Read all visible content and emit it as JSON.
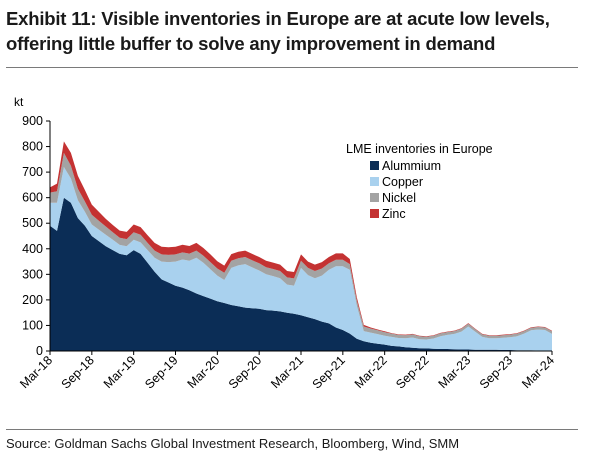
{
  "title_line1": "Exhibit 11: Visible inventories in Europe are at acute low levels,",
  "title_line2": "offering little buffer to solve any improvement in demand",
  "source": "Source: Goldman Sachs Global Investment Research, Bloomberg, Wind, SMM",
  "chart_data": {
    "type": "area",
    "stacked": true,
    "ylabel": "kt",
    "ylim": [
      0,
      900
    ],
    "yticks": [
      0,
      100,
      200,
      300,
      400,
      500,
      600,
      700,
      800,
      900
    ],
    "x_tick_labels": [
      "Mar-18",
      "Sep-18",
      "Mar-19",
      "Sep-19",
      "Mar-20",
      "Sep-20",
      "Mar-21",
      "Sep-21",
      "Mar-22",
      "Sep-22",
      "Mar-23",
      "Sep-23",
      "Mar-24"
    ],
    "x_tick_dates": [
      "2018-03",
      "2018-09",
      "2019-03",
      "2019-09",
      "2020-03",
      "2020-09",
      "2021-03",
      "2021-09",
      "2022-03",
      "2022-09",
      "2023-03",
      "2023-09",
      "2024-03"
    ],
    "legend_title": "LME inventories in Europe",
    "legend_position": "right",
    "grid": false,
    "x": [
      "2018-03",
      "2018-04",
      "2018-05",
      "2018-06",
      "2018-07",
      "2018-08",
      "2018-09",
      "2018-10",
      "2018-11",
      "2018-12",
      "2019-01",
      "2019-02",
      "2019-03",
      "2019-04",
      "2019-05",
      "2019-06",
      "2019-07",
      "2019-08",
      "2019-09",
      "2019-10",
      "2019-11",
      "2019-12",
      "2020-01",
      "2020-02",
      "2020-03",
      "2020-04",
      "2020-05",
      "2020-06",
      "2020-07",
      "2020-08",
      "2020-09",
      "2020-10",
      "2020-11",
      "2020-12",
      "2021-01",
      "2021-02",
      "2021-03",
      "2021-04",
      "2021-05",
      "2021-06",
      "2021-07",
      "2021-08",
      "2021-09",
      "2021-10",
      "2021-11",
      "2021-12",
      "2022-01",
      "2022-02",
      "2022-03",
      "2022-04",
      "2022-05",
      "2022-06",
      "2022-07",
      "2022-08",
      "2022-09",
      "2022-10",
      "2022-11",
      "2022-12",
      "2023-01",
      "2023-02",
      "2023-03",
      "2023-04",
      "2023-05",
      "2023-06",
      "2023-07",
      "2023-08",
      "2023-09",
      "2023-10",
      "2023-11",
      "2023-12",
      "2024-01",
      "2024-02",
      "2024-03"
    ],
    "series": [
      {
        "name": "Alummium",
        "color": "#0b2d56",
        "values": [
          490,
          470,
          600,
          580,
          520,
          490,
          450,
          430,
          410,
          395,
          380,
          375,
          395,
          380,
          345,
          310,
          280,
          268,
          255,
          248,
          238,
          225,
          215,
          205,
          195,
          188,
          180,
          175,
          170,
          167,
          165,
          160,
          158,
          155,
          150,
          146,
          140,
          132,
          125,
          115,
          108,
          92,
          82,
          68,
          48,
          38,
          32,
          28,
          25,
          20,
          18,
          15,
          13,
          11,
          10,
          9,
          8,
          8,
          7,
          6,
          6,
          5,
          5,
          5,
          5,
          4,
          4,
          3,
          3,
          3,
          2,
          2,
          2
        ]
      },
      {
        "name": "Copper",
        "color": "#a9d1ee",
        "values": [
          90,
          110,
          120,
          95,
          70,
          55,
          45,
          45,
          45,
          40,
          35,
          35,
          40,
          45,
          50,
          55,
          70,
          80,
          95,
          110,
          115,
          140,
          130,
          115,
          100,
          90,
          145,
          160,
          170,
          160,
          150,
          140,
          135,
          130,
          110,
          110,
          185,
          165,
          160,
          180,
          210,
          240,
          250,
          250,
          130,
          40,
          40,
          38,
          35,
          35,
          33,
          35,
          40,
          35,
          35,
          40,
          50,
          55,
          60,
          70,
          90,
          70,
          50,
          45,
          45,
          48,
          50,
          55,
          65,
          78,
          82,
          80,
          65
        ]
      },
      {
        "name": "Nickel",
        "color": "#a3a3a3",
        "values": [
          40,
          45,
          55,
          50,
          45,
          40,
          38,
          35,
          32,
          30,
          28,
          28,
          30,
          30,
          28,
          28,
          28,
          28,
          28,
          28,
          28,
          28,
          28,
          28,
          28,
          28,
          28,
          28,
          28,
          28,
          28,
          28,
          28,
          28,
          28,
          28,
          28,
          28,
          28,
          28,
          25,
          25,
          25,
          22,
          20,
          18,
          16,
          15,
          14,
          13,
          12,
          12,
          12,
          12,
          11,
          11,
          11,
          11,
          11,
          11,
          11,
          10,
          10,
          10,
          10,
          10,
          10,
          10,
          10,
          10,
          10,
          10,
          10
        ]
      },
      {
        "name": "Zinc",
        "color": "#c43232",
        "values": [
          20,
          30,
          45,
          50,
          50,
          45,
          40,
          35,
          30,
          28,
          28,
          28,
          30,
          30,
          30,
          30,
          30,
          30,
          30,
          30,
          30,
          30,
          30,
          30,
          28,
          28,
          26,
          25,
          25,
          25,
          25,
          25,
          25,
          25,
          25,
          25,
          25,
          25,
          25,
          25,
          25,
          25,
          25,
          20,
          12,
          6,
          4,
          3,
          3,
          2,
          2,
          2,
          2,
          2,
          2,
          2,
          2,
          2,
          2,
          2,
          2,
          2,
          2,
          2,
          2,
          2,
          2,
          2,
          2,
          2,
          2,
          2,
          2
        ]
      }
    ]
  }
}
